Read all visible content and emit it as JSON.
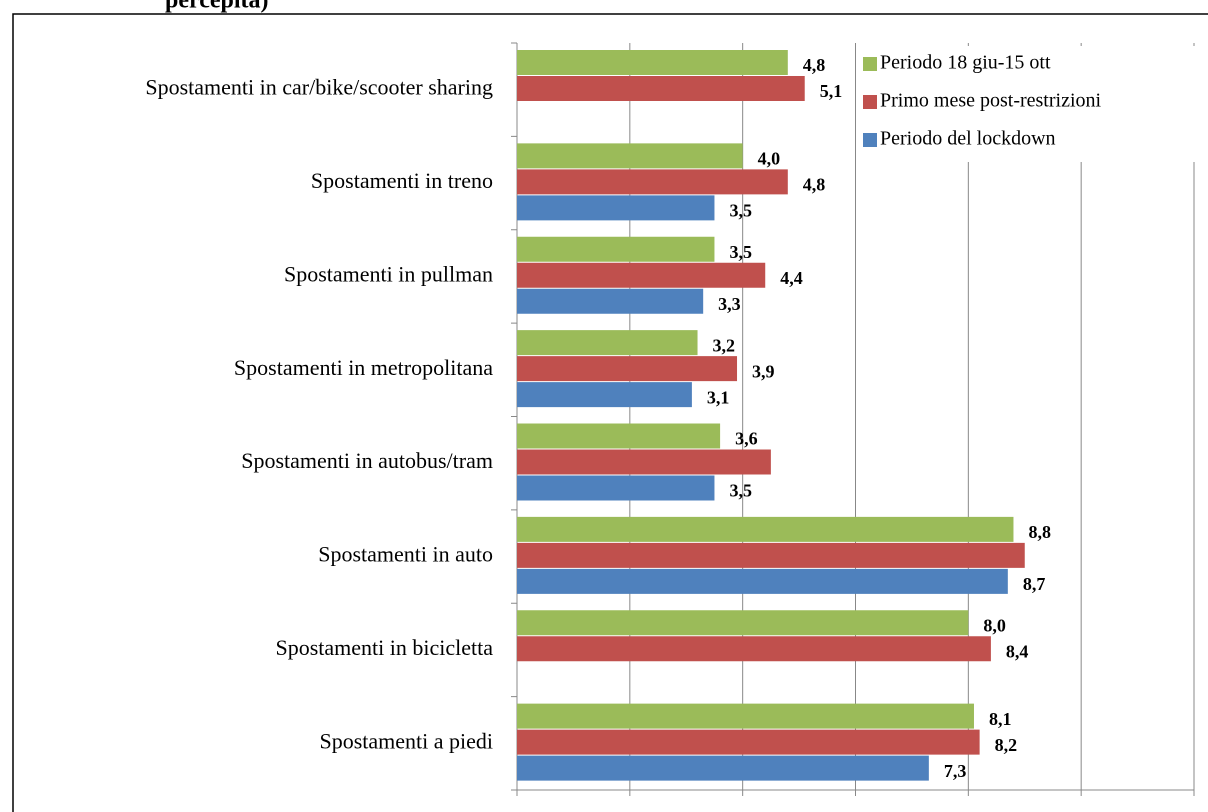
{
  "chart_data": {
    "type": "barh",
    "title": "percepita)",
    "categories": [
      "Spostamenti in car/bike/scooter sharing",
      "Spostamenti in treno",
      "Spostamenti in pullman",
      "Spostamenti in metropolitana",
      "Spostamenti in autobus/tram",
      "Spostamenti in auto",
      "Spostamenti in bicicletta",
      "Spostamenti a piedi"
    ],
    "series": [
      {
        "name": "Periodo 18 giu-15 ott",
        "color": "#9bbb59",
        "values": [
          4.8,
          4.0,
          3.5,
          3.2,
          3.6,
          8.8,
          8.0,
          8.1
        ],
        "value_labels": [
          "4,8",
          "4,0",
          "3,5",
          "3,2",
          "3,6",
          "8,8",
          "8,0",
          "8,1"
        ]
      },
      {
        "name": "Primo mese post-restrizioni",
        "color": "#c0504d",
        "values": [
          5.1,
          4.8,
          4.4,
          3.9,
          4.5,
          9.0,
          8.4,
          8.2
        ],
        "value_labels": [
          "5,1",
          "4,8",
          "4,4",
          "3,9",
          null,
          null,
          "8,4",
          "8,2"
        ]
      },
      {
        "name": "Periodo del lockdown",
        "color": "#4f81bd",
        "values": [
          null,
          3.5,
          3.3,
          3.1,
          3.5,
          8.7,
          null,
          7.3
        ],
        "value_labels": [
          null,
          "3,5",
          "3,3",
          "3,1",
          "3,5",
          "8,7",
          null,
          "7,3"
        ]
      }
    ],
    "xlim": [
      0,
      12
    ],
    "xticks": [
      0,
      2,
      4,
      6,
      8,
      10,
      12
    ],
    "grid": true,
    "legend": "top-right"
  }
}
